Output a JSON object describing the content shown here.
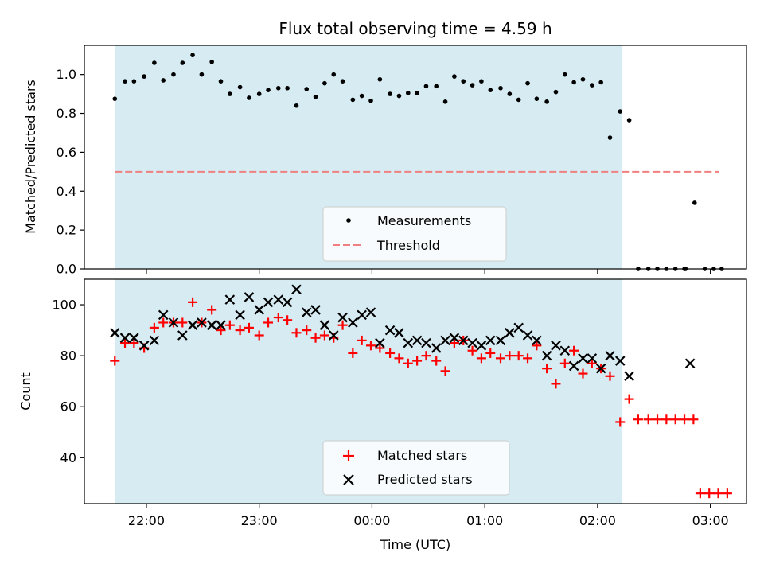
{
  "chart_data": [
    {
      "type": "scatter",
      "title": "Flux total observing time = 4.59 h",
      "ylabel": "Matched/Predicted stars",
      "xlabel": "",
      "ylim": [
        0,
        1.15
      ],
      "y_ticks": [
        "0.0",
        "0.2",
        "0.4",
        "0.6",
        "0.8",
        "1.0"
      ],
      "y_tick_values": [
        0,
        0.2,
        0.4,
        0.6,
        0.8,
        1.0
      ],
      "x_ticks": [
        "22:00",
        "23:00",
        "00:00",
        "01:00",
        "02:00",
        "03:00"
      ],
      "x_tick_hours": [
        22,
        23,
        24,
        25,
        26,
        27
      ],
      "xlim_hours": [
        21.45,
        27.32
      ],
      "observing_window_hours": [
        21.72,
        26.22
      ],
      "threshold": {
        "name": "Threshold",
        "value": 0.5,
        "x_range_hours": [
          21.72,
          27.08
        ],
        "color": "#f08080"
      },
      "legend": {
        "placement": "lower-center",
        "entries": [
          "Measurements",
          "Threshold"
        ]
      },
      "series": [
        {
          "name": "Measurements",
          "color": "#000000",
          "points": [
            [
              21.72,
              0.875
            ],
            [
              21.81,
              0.965
            ],
            [
              21.89,
              0.965
            ],
            [
              21.98,
              0.99
            ],
            [
              22.07,
              1.06
            ],
            [
              22.15,
              0.97
            ],
            [
              22.24,
              1.0
            ],
            [
              22.32,
              1.06
            ],
            [
              22.41,
              1.1
            ],
            [
              22.49,
              1.0
            ],
            [
              22.58,
              1.065
            ],
            [
              22.66,
              0.965
            ],
            [
              22.74,
              0.9
            ],
            [
              22.83,
              0.935
            ],
            [
              22.91,
              0.88
            ],
            [
              23.0,
              0.9
            ],
            [
              23.08,
              0.92
            ],
            [
              23.17,
              0.93
            ],
            [
              23.25,
              0.93
            ],
            [
              23.33,
              0.84
            ],
            [
              23.42,
              0.925
            ],
            [
              23.5,
              0.885
            ],
            [
              23.58,
              0.955
            ],
            [
              23.66,
              1.0
            ],
            [
              23.74,
              0.965
            ],
            [
              23.83,
              0.87
            ],
            [
              23.91,
              0.89
            ],
            [
              23.99,
              0.865
            ],
            [
              24.07,
              0.975
            ],
            [
              24.16,
              0.9
            ],
            [
              24.24,
              0.89
            ],
            [
              24.32,
              0.905
            ],
            [
              24.4,
              0.905
            ],
            [
              24.48,
              0.94
            ],
            [
              24.57,
              0.94
            ],
            [
              24.65,
              0.86
            ],
            [
              24.73,
              0.99
            ],
            [
              24.81,
              0.965
            ],
            [
              24.89,
              0.945
            ],
            [
              24.97,
              0.965
            ],
            [
              25.05,
              0.92
            ],
            [
              25.14,
              0.93
            ],
            [
              25.22,
              0.9
            ],
            [
              25.3,
              0.87
            ],
            [
              25.38,
              0.955
            ],
            [
              25.46,
              0.875
            ],
            [
              25.55,
              0.86
            ],
            [
              25.63,
              0.91
            ],
            [
              25.71,
              1.0
            ],
            [
              25.79,
              0.96
            ],
            [
              25.87,
              0.975
            ],
            [
              25.95,
              0.945
            ],
            [
              26.03,
              0.96
            ],
            [
              26.11,
              0.675
            ],
            [
              26.2,
              0.81
            ],
            [
              26.28,
              0.765
            ],
            [
              26.36,
              0.0
            ],
            [
              26.45,
              0.0
            ],
            [
              26.53,
              0.0
            ],
            [
              26.61,
              0.0
            ],
            [
              26.69,
              0.0
            ],
            [
              26.77,
              0.0
            ],
            [
              26.78,
              0.0
            ],
            [
              26.86,
              0.34
            ],
            [
              26.95,
              0.0
            ],
            [
              27.03,
              0.0
            ],
            [
              27.1,
              0.0
            ]
          ]
        }
      ]
    },
    {
      "type": "scatter",
      "title": "",
      "ylabel": "Count",
      "xlabel": "Time (UTC)",
      "ylim": [
        22,
        110
      ],
      "y_ticks": [
        "40",
        "60",
        "80",
        "100"
      ],
      "y_tick_values": [
        40,
        60,
        80,
        100
      ],
      "x_ticks": [
        "22:00",
        "23:00",
        "00:00",
        "01:00",
        "02:00",
        "03:00"
      ],
      "x_tick_hours": [
        22,
        23,
        24,
        25,
        26,
        27
      ],
      "xlim_hours": [
        21.45,
        27.32
      ],
      "observing_window_hours": [
        21.72,
        26.22
      ],
      "legend": {
        "placement": "lower-center",
        "entries": [
          "Matched stars",
          "Predicted stars"
        ]
      },
      "series": [
        {
          "name": "Matched stars",
          "marker": "plus",
          "color": "#ff0000",
          "points": [
            [
              21.72,
              78
            ],
            [
              21.81,
              85
            ],
            [
              21.89,
              85
            ],
            [
              21.98,
              83
            ],
            [
              22.07,
              91
            ],
            [
              22.15,
              93
            ],
            [
              22.24,
              93
            ],
            [
              22.32,
              93
            ],
            [
              22.41,
              101
            ],
            [
              22.49,
              93
            ],
            [
              22.58,
              98
            ],
            [
              22.66,
              90
            ],
            [
              22.74,
              92
            ],
            [
              22.83,
              90
            ],
            [
              22.91,
              91
            ],
            [
              23.0,
              88
            ],
            [
              23.08,
              93
            ],
            [
              23.17,
              95
            ],
            [
              23.25,
              94
            ],
            [
              23.33,
              89
            ],
            [
              23.42,
              90
            ],
            [
              23.5,
              87
            ],
            [
              23.58,
              88
            ],
            [
              23.66,
              87
            ],
            [
              23.74,
              92
            ],
            [
              23.83,
              81
            ],
            [
              23.91,
              86
            ],
            [
              23.99,
              84
            ],
            [
              24.07,
              83
            ],
            [
              24.16,
              81
            ],
            [
              24.24,
              79
            ],
            [
              24.32,
              77
            ],
            [
              24.4,
              78
            ],
            [
              24.48,
              80
            ],
            [
              24.57,
              78
            ],
            [
              24.65,
              74
            ],
            [
              24.73,
              85
            ],
            [
              24.81,
              86
            ],
            [
              24.89,
              82
            ],
            [
              24.97,
              79
            ],
            [
              25.05,
              81
            ],
            [
              25.14,
              79
            ],
            [
              25.22,
              80
            ],
            [
              25.3,
              80
            ],
            [
              25.38,
              79
            ],
            [
              25.46,
              84
            ],
            [
              25.55,
              75
            ],
            [
              25.63,
              69
            ],
            [
              25.71,
              77
            ],
            [
              25.79,
              82
            ],
            [
              25.87,
              73
            ],
            [
              25.95,
              77
            ],
            [
              26.03,
              75
            ],
            [
              26.11,
              72
            ],
            [
              26.2,
              54
            ],
            [
              26.28,
              63
            ],
            [
              26.36,
              55
            ],
            [
              26.45,
              55
            ],
            [
              26.53,
              55
            ],
            [
              26.61,
              55
            ],
            [
              26.69,
              55
            ],
            [
              26.77,
              55
            ],
            [
              26.85,
              55
            ],
            [
              26.91,
              26
            ],
            [
              26.99,
              26
            ],
            [
              27.07,
              26
            ],
            [
              27.15,
              26
            ]
          ]
        },
        {
          "name": "Predicted stars",
          "marker": "x",
          "color": "#000000",
          "points": [
            [
              21.72,
              89
            ],
            [
              21.81,
              87
            ],
            [
              21.89,
              87
            ],
            [
              21.98,
              84
            ],
            [
              22.07,
              86
            ],
            [
              22.15,
              96
            ],
            [
              22.24,
              93
            ],
            [
              22.32,
              88
            ],
            [
              22.41,
              92
            ],
            [
              22.49,
              93
            ],
            [
              22.58,
              92
            ],
            [
              22.66,
              92
            ],
            [
              22.74,
              102
            ],
            [
              22.83,
              96
            ],
            [
              22.91,
              103
            ],
            [
              23.0,
              98
            ],
            [
              23.08,
              101
            ],
            [
              23.17,
              102
            ],
            [
              23.25,
              101
            ],
            [
              23.33,
              106
            ],
            [
              23.42,
              97
            ],
            [
              23.5,
              98
            ],
            [
              23.58,
              92
            ],
            [
              23.66,
              88
            ],
            [
              23.74,
              95
            ],
            [
              23.83,
              93
            ],
            [
              23.91,
              96
            ],
            [
              23.99,
              97
            ],
            [
              24.07,
              85
            ],
            [
              24.16,
              90
            ],
            [
              24.24,
              89
            ],
            [
              24.32,
              85
            ],
            [
              24.4,
              86
            ],
            [
              24.48,
              85
            ],
            [
              24.57,
              83
            ],
            [
              24.65,
              86
            ],
            [
              24.73,
              87
            ],
            [
              24.81,
              86
            ],
            [
              24.89,
              85
            ],
            [
              24.97,
              84
            ],
            [
              25.05,
              86
            ],
            [
              25.14,
              86
            ],
            [
              25.22,
              89
            ],
            [
              25.3,
              91
            ],
            [
              25.38,
              88
            ],
            [
              25.46,
              86
            ],
            [
              25.55,
              80
            ],
            [
              25.63,
              84
            ],
            [
              25.71,
              82
            ],
            [
              25.79,
              76
            ],
            [
              25.87,
              79
            ],
            [
              25.95,
              79
            ],
            [
              26.03,
              75
            ],
            [
              26.11,
              80
            ],
            [
              26.2,
              78
            ],
            [
              26.28,
              72
            ],
            [
              26.82,
              77
            ]
          ]
        }
      ]
    }
  ]
}
